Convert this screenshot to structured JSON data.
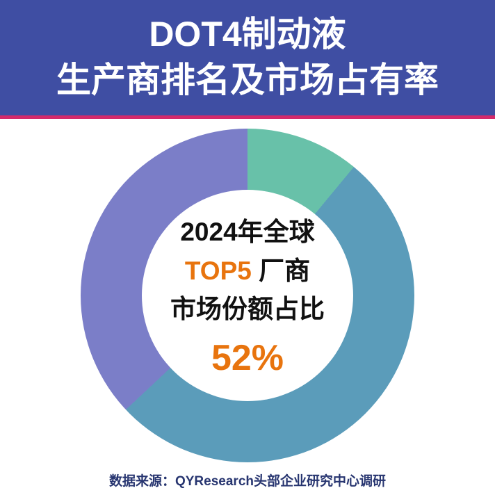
{
  "header": {
    "line1": "DOT4制动液",
    "line2": "生产商排名及市场占有率"
  },
  "colors": {
    "header_bg": "#3F4EA3",
    "divider": "#D42A6B",
    "orange": "#E8740E",
    "footer_text": "#273570",
    "slice_green": "#68C1A9",
    "slice_blue": "#5B9CBA",
    "slice_purple": "#7B7EC8"
  },
  "center": {
    "line1": "2024年全球",
    "line2_highlight": "TOP5",
    "line2_rest": " 厂商",
    "line3": "市场份额占比",
    "value": "52%"
  },
  "footer": {
    "source": "数据来源：QYResearch头部企业研究中心调研"
  },
  "chart_data": {
    "type": "pie",
    "donut": true,
    "start_angle_deg": 0,
    "clockwise": true,
    "title": "2024年全球 TOP5 厂商市场份额占比",
    "center_value": "52%",
    "slices": [
      {
        "name": "segment-green-top-right",
        "value": 11,
        "color": "#68C1A9"
      },
      {
        "name": "segment-blue-right-bottom",
        "value": 52,
        "color": "#5B9CBA"
      },
      {
        "name": "segment-purple-left-top",
        "value": 37,
        "color": "#7B7EC8"
      }
    ],
    "inner_radius_ratio": 0.63,
    "legend": "none"
  }
}
